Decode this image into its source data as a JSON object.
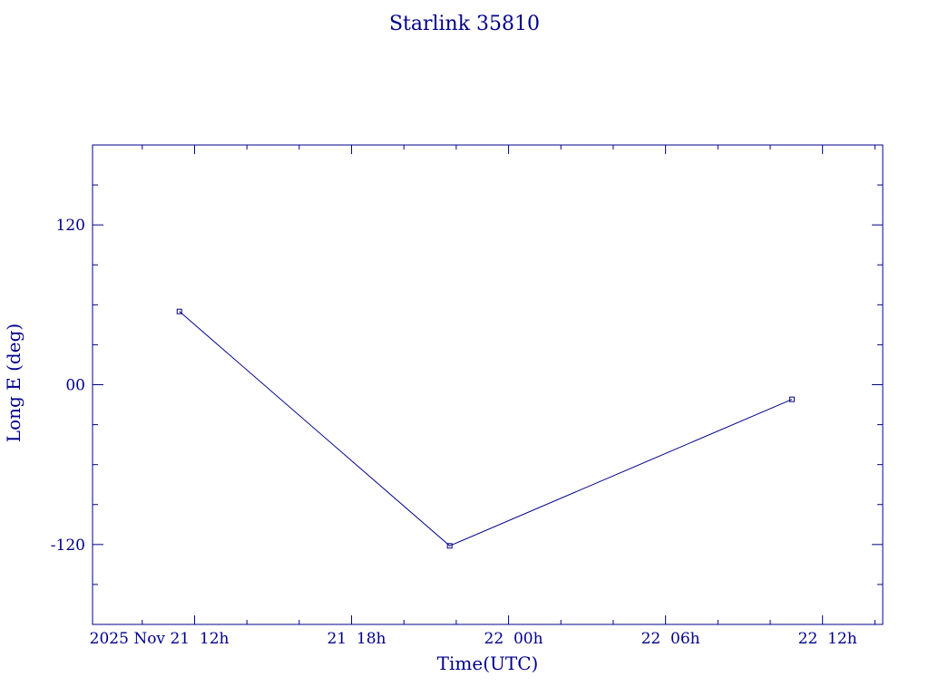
{
  "chart_data": {
    "type": "line",
    "title": "Starlink 35810",
    "xlabel": "Time(UTC)",
    "ylabel": "Long E (deg)",
    "x_ticks": [
      "2025 Nov 21  12h",
      "21  18h",
      "22  00h",
      "22  06h",
      "22  12h"
    ],
    "x_tick_hours": [
      12,
      18,
      24,
      30,
      36
    ],
    "xlim_hours": [
      8.1,
      38.3
    ],
    "y_ticks": [
      "120",
      "00",
      "-120"
    ],
    "y_tick_values": [
      120,
      0,
      -120
    ],
    "ylim": [
      -180,
      180
    ],
    "series": [
      {
        "points": [
          {
            "x": "2025-11-21 11:25",
            "y": 55
          },
          {
            "x": "2025-11-21 21:45",
            "y": -121
          },
          {
            "x": "2025-11-22 10:50",
            "y": -11
          }
        ],
        "x_hours": [
          11.42,
          21.75,
          34.83
        ],
        "values": [
          55,
          -121,
          -11
        ]
      }
    ],
    "grid": false,
    "color": "#00008b"
  }
}
